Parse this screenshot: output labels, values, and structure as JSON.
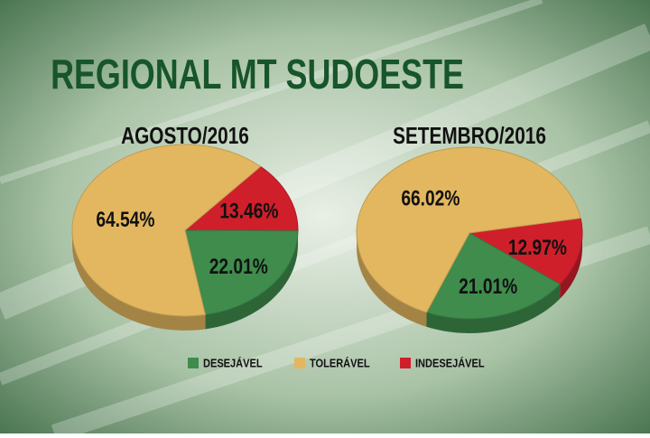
{
  "title": "REGIONAL MT SUDOESTE",
  "chart_data": [
    {
      "type": "pie",
      "title": "AGOSTO/2016",
      "categories": [
        "DESEJÁVEL",
        "TOLERÁVEL",
        "INDESEJÁVEL"
      ],
      "values": [
        22.01,
        64.54,
        13.46
      ],
      "value_labels": [
        "22.01%",
        "64.54%",
        "13.46%"
      ],
      "colors": [
        "#3f8c4c",
        "#e2b760",
        "#cf1f2b"
      ]
    },
    {
      "type": "pie",
      "title": "SETEMBRO/2016",
      "categories": [
        "DESEJÁVEL",
        "TOLERÁVEL",
        "INDESEJÁVEL"
      ],
      "values": [
        21.01,
        66.02,
        12.97
      ],
      "value_labels": [
        "21.01%",
        "66.02%",
        "12.97%"
      ],
      "colors": [
        "#3f8c4c",
        "#e2b760",
        "#cf1f2b"
      ]
    }
  ]
}
